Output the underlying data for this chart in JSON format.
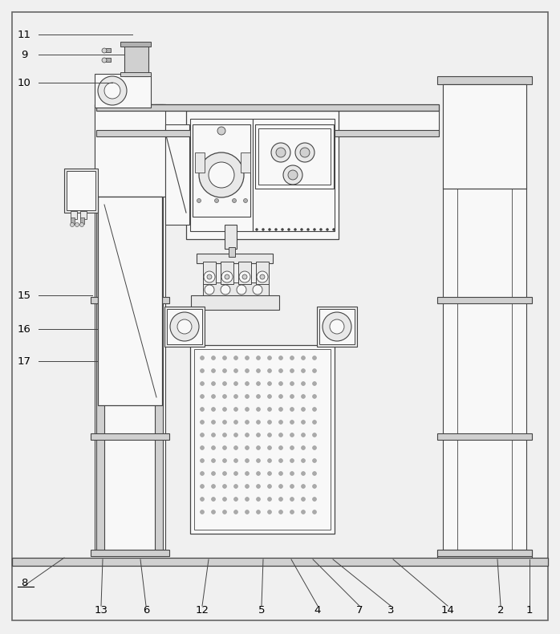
{
  "bg_color": "#f0f0f0",
  "line_color": "#444444",
  "fill_white": "#f8f8f8",
  "fill_light": "#e8e8e8",
  "fill_med": "#d0d0d0",
  "fill_dark": "#b0b0b0",
  "figsize": [
    6.98,
    7.9
  ],
  "dpi": 100,
  "bottom_labels": [
    [
      "1",
      669,
      757,
      660,
      710
    ],
    [
      "2",
      629,
      657,
      620,
      710
    ],
    [
      "14",
      557,
      490,
      490,
      710
    ],
    [
      "3",
      486,
      430,
      430,
      710
    ],
    [
      "7",
      447,
      395,
      390,
      710
    ],
    [
      "4",
      396,
      360,
      365,
      710
    ],
    [
      "5",
      326,
      330,
      325,
      710
    ],
    [
      "12",
      251,
      265,
      258,
      710
    ],
    [
      "6",
      181,
      175,
      175,
      710
    ],
    [
      "13",
      126,
      128,
      125,
      710
    ]
  ],
  "left_labels": [
    [
      "11",
      30,
      43,
      160,
      43
    ],
    [
      "9",
      30,
      68,
      155,
      68
    ],
    [
      "10",
      30,
      98,
      145,
      98
    ],
    [
      "15",
      30,
      370,
      120,
      370
    ],
    [
      "16",
      30,
      410,
      80,
      410
    ],
    [
      "17",
      30,
      450,
      80,
      450
    ]
  ]
}
